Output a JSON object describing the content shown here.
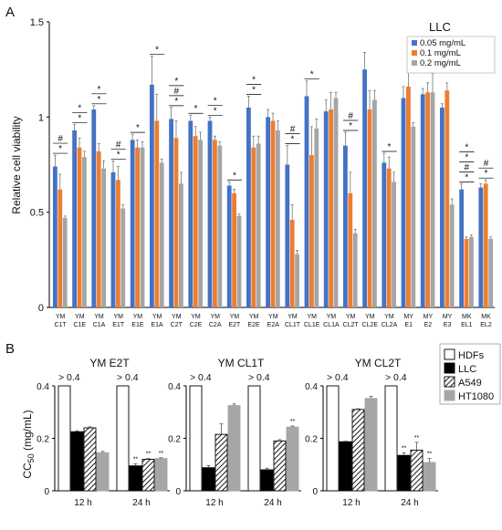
{
  "chart_data": [
    {
      "panel_label": "A",
      "type": "bar",
      "ylabel": "Relative cell viability",
      "ylim": [
        0,
        1.5
      ],
      "yticks": [
        "0",
        "0.5",
        "1",
        "1.5"
      ],
      "legend_title": "LLC",
      "legend_placement": "top-right",
      "colors": [
        "#4472C4",
        "#ED7D31",
        "#A5A5A5"
      ],
      "categories": [
        [
          "YM",
          "C1T"
        ],
        [
          "YM",
          "C1E"
        ],
        [
          "YM",
          "C1A"
        ],
        [
          "YM",
          "E1T"
        ],
        [
          "YM",
          "E1E"
        ],
        [
          "YM",
          "E1A"
        ],
        [
          "YM",
          "C2T"
        ],
        [
          "YM",
          "C2E"
        ],
        [
          "YM",
          "C2A"
        ],
        [
          "YM",
          "E2T"
        ],
        [
          "YM",
          "E2E"
        ],
        [
          "YM",
          "E2A"
        ],
        [
          "YM",
          "CL1T"
        ],
        [
          "YM",
          "CL1E"
        ],
        [
          "YM",
          "CL1A"
        ],
        [
          "YM",
          "CL2T"
        ],
        [
          "YM",
          "CL2E"
        ],
        [
          "YM",
          "CL2A"
        ],
        [
          "MY",
          "E1"
        ],
        [
          "MY",
          "E2"
        ],
        [
          "MY",
          "E3"
        ],
        [
          "MK",
          "EL1"
        ],
        [
          "MK",
          "EL2"
        ]
      ],
      "series": [
        {
          "name": "0.05  mg/mL",
          "values": [
            0.74,
            0.93,
            1.04,
            0.71,
            0.88,
            1.17,
            0.99,
            0.98,
            0.98,
            0.64,
            1.05,
            1.0,
            0.75,
            1.11,
            1.03,
            0.85,
            1.25,
            0.76,
            1.1,
            1.12,
            1.05,
            0.62,
            0.63
          ],
          "errors": [
            0.06,
            0.03,
            0.02,
            0.06,
            0.03,
            0.15,
            0.06,
            0.03,
            0.02,
            0.02,
            0.06,
            0.04,
            0.1,
            0.08,
            0.06,
            0.07,
            0.09,
            0.05,
            0.06,
            0.03,
            0.02,
            0.03,
            0.02
          ]
        },
        {
          "name": "0.1  mg/mL",
          "values": [
            0.62,
            0.84,
            0.82,
            0.67,
            0.84,
            0.98,
            0.89,
            0.9,
            0.88,
            0.6,
            0.84,
            0.98,
            0.46,
            0.8,
            1.04,
            0.6,
            1.04,
            0.73,
            1.16,
            1.13,
            1.14,
            0.36,
            0.65
          ],
          "errors": [
            0.08,
            0.05,
            0.04,
            0.07,
            0.04,
            0.14,
            0.09,
            0.05,
            0.02,
            0.02,
            0.06,
            0.04,
            0.08,
            0.15,
            0.09,
            0.11,
            0.1,
            0.06,
            0.08,
            0.05,
            0.04,
            0.01,
            0.02
          ]
        },
        {
          "name": "0.2  mg/mL",
          "values": [
            0.47,
            0.79,
            0.73,
            0.52,
            0.84,
            0.76,
            0.65,
            0.88,
            0.85,
            0.48,
            0.86,
            0.93,
            0.28,
            0.94,
            1.1,
            0.39,
            1.09,
            0.66,
            0.95,
            1.13,
            0.54,
            0.37,
            0.36
          ],
          "errors": [
            0.01,
            0.03,
            0.04,
            0.02,
            0.03,
            0.02,
            0.06,
            0.04,
            0.02,
            0.01,
            0.04,
            0.05,
            0.02,
            0.05,
            0.03,
            0.02,
            0.05,
            0.05,
            0.02,
            0.1,
            0.03,
            0.01,
            0.01
          ]
        }
      ],
      "annotations": [
        {
          "group": 0,
          "marks": [
            "*",
            "#"
          ]
        },
        {
          "group": 1,
          "marks": [
            "*",
            "*"
          ]
        },
        {
          "group": 2,
          "marks": [
            "*",
            "*"
          ]
        },
        {
          "group": 3,
          "marks": [
            "*",
            "#"
          ]
        },
        {
          "group": 4,
          "marks": [
            "*"
          ]
        },
        {
          "group": 5,
          "marks": [
            "*"
          ]
        },
        {
          "group": 6,
          "marks": [
            "*",
            "#",
            "*"
          ]
        },
        {
          "group": 7,
          "marks": [
            "*"
          ]
        },
        {
          "group": 8,
          "marks": [
            "*",
            "*"
          ]
        },
        {
          "group": 9,
          "marks": [
            "*"
          ]
        },
        {
          "group": 10,
          "marks": [
            "*",
            "*"
          ]
        },
        {
          "group": 12,
          "marks": [
            "*",
            "#"
          ]
        },
        {
          "group": 13,
          "marks": [
            "*"
          ]
        },
        {
          "group": 15,
          "marks": [
            "*",
            "#"
          ]
        },
        {
          "group": 17,
          "marks": [
            "*"
          ]
        },
        {
          "group": 21,
          "marks": [
            "*",
            "#",
            "*",
            "*"
          ]
        },
        {
          "group": 22,
          "marks": [
            "*",
            "#"
          ]
        }
      ]
    },
    {
      "panel_label": "B",
      "type": "bar",
      "ylabel": "CC",
      "ylabel_sub": "50",
      "ylabel_unit": " (mg/mL)",
      "ylim": [
        0,
        0.4
      ],
      "yticks": [
        "0",
        "0.2",
        "0.4"
      ],
      "legend": [
        "HDFs",
        "LLC",
        "A549",
        "HT1080"
      ],
      "legend_placement": "top-right",
      "over_label": "> 0.4",
      "panels": [
        {
          "title": "YM E2T",
          "categories": [
            "12 h",
            "24 h"
          ],
          "values": [
            [
              0.4,
              0.225,
              0.24,
              0.145
            ],
            [
              0.4,
              0.095,
              0.12,
              0.123
            ]
          ],
          "errors": [
            [
              0,
              0.004,
              0.004,
              0.005
            ],
            [
              0,
              0.008,
              0.003,
              0.003
            ]
          ],
          "sig": [
            [
              "",
              "",
              "",
              ""
            ],
            [
              "",
              "**",
              "**",
              "**"
            ]
          ]
        },
        {
          "title": "YM CL1T",
          "categories": [
            "12 h",
            "24 h"
          ],
          "values": [
            [
              0.4,
              0.088,
              0.215,
              0.325
            ],
            [
              0.4,
              0.08,
              0.19,
              0.243
            ]
          ],
          "errors": [
            [
              0,
              0.008,
              0.04,
              0.006
            ],
            [
              0,
              0.006,
              0.005,
              0.004
            ]
          ],
          "sig": [
            [
              "",
              "",
              "",
              ""
            ],
            [
              "",
              "",
              "",
              "**"
            ]
          ]
        },
        {
          "title": "YM CL2T",
          "categories": [
            "12 h",
            "24 h"
          ],
          "values": [
            [
              0.4,
              0.187,
              0.31,
              0.352
            ],
            [
              0.4,
              0.135,
              0.155,
              0.108
            ]
          ],
          "errors": [
            [
              0,
              0.002,
              0.003,
              0.008
            ],
            [
              0,
              0.01,
              0.03,
              0.015
            ]
          ],
          "sig": [
            [
              "",
              "",
              "",
              ""
            ],
            [
              "",
              "**",
              "**",
              "**"
            ]
          ]
        }
      ]
    }
  ]
}
